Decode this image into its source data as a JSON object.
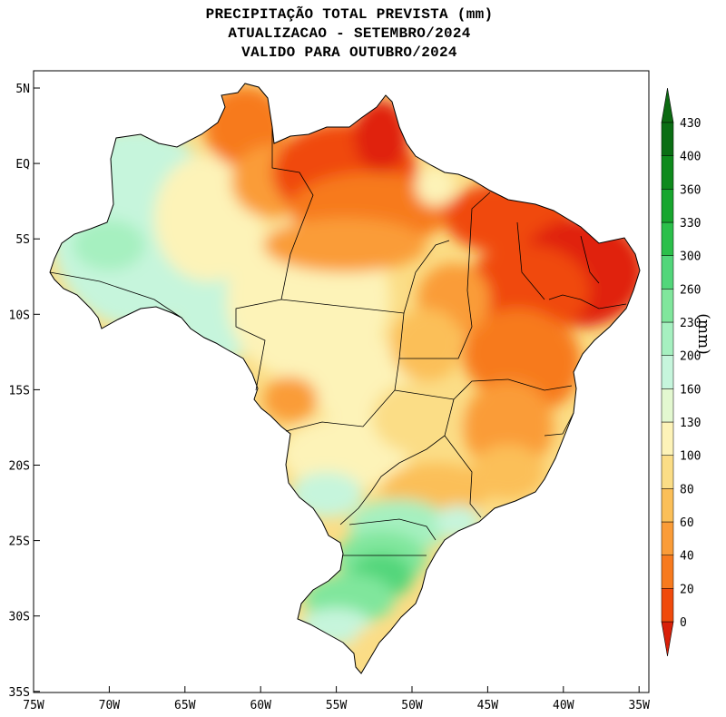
{
  "title": {
    "line1": "PRECIPITAÇÃO TOTAL PREVISTA (mm)",
    "line2": "ATUALIZACAO - SETEMBRO/2024",
    "line3": "VALIDO PARA OUTUBRO/2024"
  },
  "axes": {
    "lat_labels": [
      "5N",
      "EQ",
      "5S",
      "10S",
      "15S",
      "20S",
      "25S",
      "30S",
      "35S"
    ],
    "lon_labels": [
      "75W",
      "70W",
      "65W",
      "60W",
      "55W",
      "50W",
      "45W",
      "40W",
      "35W"
    ]
  },
  "colorbar": {
    "unit": "(mm)",
    "levels": [
      "0",
      "20",
      "40",
      "60",
      "80",
      "100",
      "130",
      "160",
      "200",
      "230",
      "260",
      "300",
      "330",
      "360",
      "400",
      "430"
    ],
    "colors": [
      "#e0200a",
      "#f04a0c",
      "#f77a1e",
      "#fa9c38",
      "#fbbf58",
      "#fbdd86",
      "#fdf3b8",
      "#e3f8d0",
      "#c6f5dc",
      "#a6f0c0",
      "#80e69c",
      "#52d67a",
      "#2bbf4a",
      "#17a62e",
      "#0e8a1c",
      "#0a6e14",
      "#055a0c"
    ],
    "under_color": "#d8200a",
    "over_color": "#0c6a12"
  },
  "map": {
    "region": "Brasil",
    "lon_range": [
      -75,
      -35
    ],
    "lat_range": [
      -35,
      5
    ]
  }
}
